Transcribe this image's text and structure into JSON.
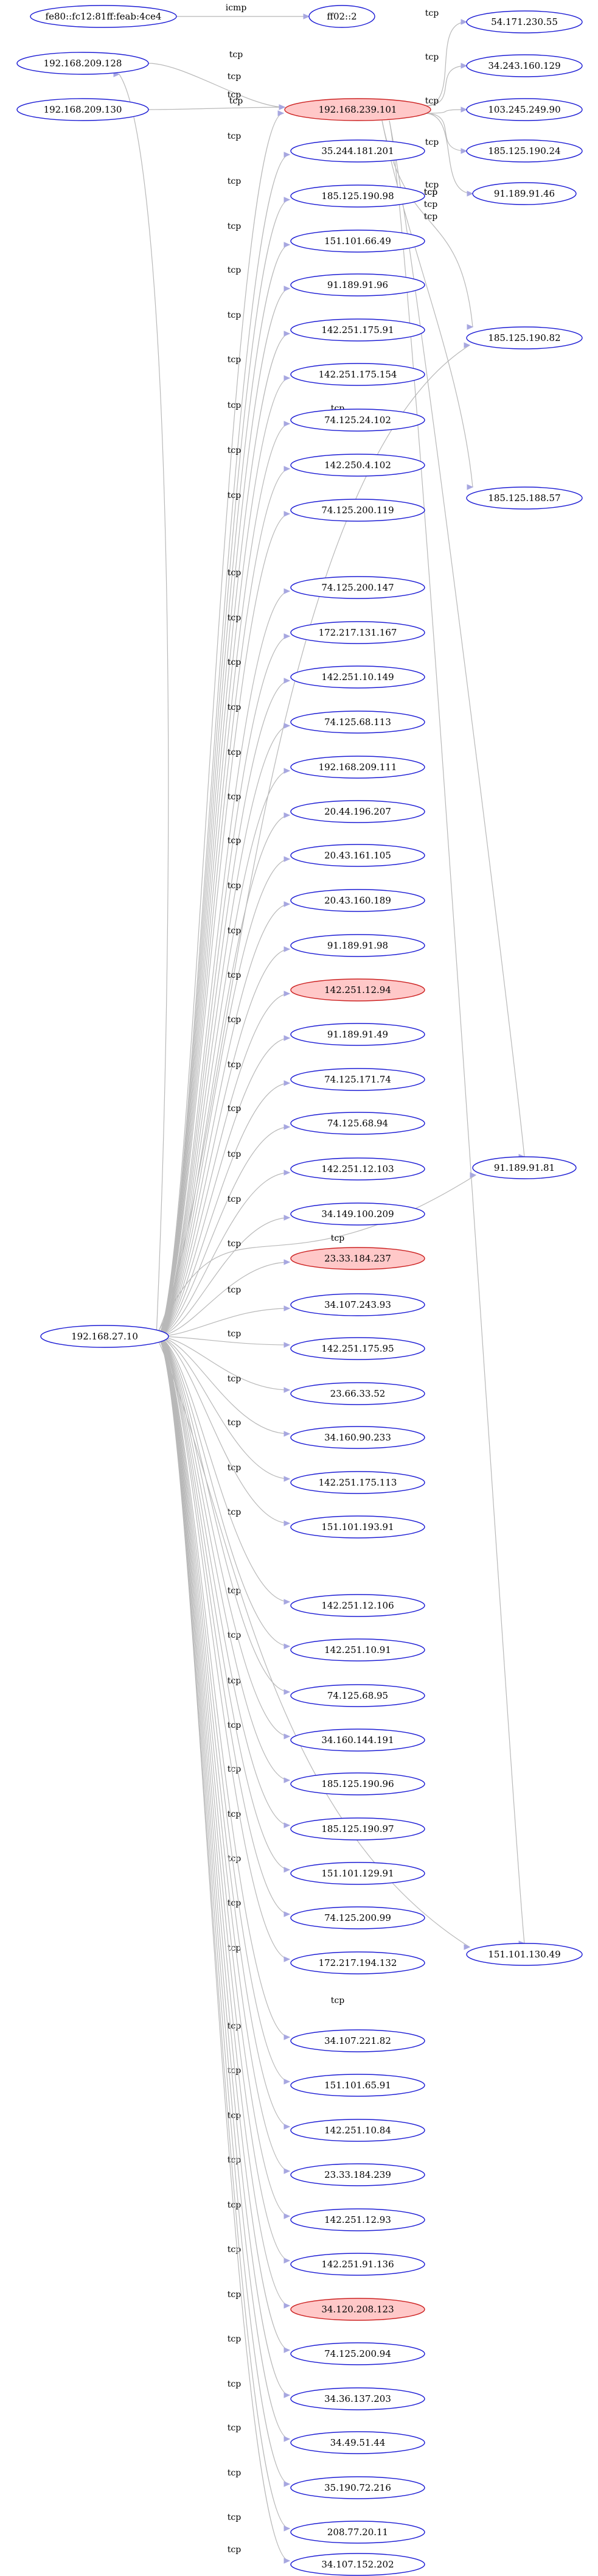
{
  "graph": {
    "nodes": [
      {
        "id": "n_fe80",
        "label": "fe80::fc12:81ff:feab:4ce4",
        "highlight": false
      },
      {
        "id": "n_ff02",
        "label": "ff02::2",
        "highlight": false
      },
      {
        "id": "n_209_128",
        "label": "192.168.209.128",
        "highlight": false
      },
      {
        "id": "n_209_130",
        "label": "192.168.209.130",
        "highlight": false
      },
      {
        "id": "n_hub1",
        "label": "192.168.239.101",
        "highlight": true
      },
      {
        "id": "n_54",
        "label": "54.171.230.55",
        "highlight": false
      },
      {
        "id": "n_34_243",
        "label": "34.243.160.129",
        "highlight": false
      },
      {
        "id": "n_103",
        "label": "103.245.249.90",
        "highlight": false
      },
      {
        "id": "n_185_24",
        "label": "185.125.190.24",
        "highlight": false
      },
      {
        "id": "n_91_46",
        "label": "91.189.91.46",
        "highlight": false
      },
      {
        "id": "n_185_82",
        "label": "185.125.190.82",
        "highlight": false
      },
      {
        "id": "n_185_188",
        "label": "185.125.188.57",
        "highlight": false
      },
      {
        "id": "n_91_81",
        "label": "91.189.91.81",
        "highlight": false
      },
      {
        "id": "n_151_130",
        "label": "151.101.130.49",
        "highlight": false
      },
      {
        "id": "n_hub2",
        "label": "192.168.27.10",
        "highlight": false
      },
      {
        "id": "c1",
        "label": "35.244.181.201",
        "highlight": false
      },
      {
        "id": "c2",
        "label": "185.125.190.98",
        "highlight": false
      },
      {
        "id": "c3",
        "label": "151.101.66.49",
        "highlight": false
      },
      {
        "id": "c4",
        "label": "91.189.91.96",
        "highlight": false
      },
      {
        "id": "c5",
        "label": "142.251.175.91",
        "highlight": false
      },
      {
        "id": "c6",
        "label": "142.251.175.154",
        "highlight": false
      },
      {
        "id": "c7",
        "label": "74.125.24.102",
        "highlight": false
      },
      {
        "id": "c8",
        "label": "142.250.4.102",
        "highlight": false
      },
      {
        "id": "c9",
        "label": "74.125.200.119",
        "highlight": false
      },
      {
        "id": "c10",
        "label": "74.125.200.147",
        "highlight": false
      },
      {
        "id": "c11",
        "label": "172.217.131.167",
        "highlight": false
      },
      {
        "id": "c12",
        "label": "142.251.10.149",
        "highlight": false
      },
      {
        "id": "c13",
        "label": "74.125.68.113",
        "highlight": false
      },
      {
        "id": "c14",
        "label": "192.168.209.111",
        "highlight": false
      },
      {
        "id": "c15",
        "label": "20.44.196.207",
        "highlight": false
      },
      {
        "id": "c16",
        "label": "20.43.161.105",
        "highlight": false
      },
      {
        "id": "c17",
        "label": "20.43.160.189",
        "highlight": false
      },
      {
        "id": "c18",
        "label": "91.189.91.98",
        "highlight": false
      },
      {
        "id": "c19",
        "label": "142.251.12.94",
        "highlight": true
      },
      {
        "id": "c20",
        "label": "91.189.91.49",
        "highlight": false
      },
      {
        "id": "c21",
        "label": "74.125.171.74",
        "highlight": false
      },
      {
        "id": "c22",
        "label": "74.125.68.94",
        "highlight": false
      },
      {
        "id": "c23",
        "label": "142.251.12.103",
        "highlight": false
      },
      {
        "id": "c24",
        "label": "34.149.100.209",
        "highlight": false
      },
      {
        "id": "c25",
        "label": "23.33.184.237",
        "highlight": true
      },
      {
        "id": "c26",
        "label": "34.107.243.93",
        "highlight": false
      },
      {
        "id": "c27",
        "label": "142.251.175.95",
        "highlight": false
      },
      {
        "id": "c28",
        "label": "23.66.33.52",
        "highlight": false
      },
      {
        "id": "c29",
        "label": "34.160.90.233",
        "highlight": false
      },
      {
        "id": "c30",
        "label": "142.251.175.113",
        "highlight": false
      },
      {
        "id": "c31",
        "label": "151.101.193.91",
        "highlight": false
      },
      {
        "id": "c32",
        "label": "142.251.12.106",
        "highlight": false
      },
      {
        "id": "c33",
        "label": "142.251.10.91",
        "highlight": false
      },
      {
        "id": "c34",
        "label": "74.125.68.95",
        "highlight": false
      },
      {
        "id": "c35",
        "label": "34.160.144.191",
        "highlight": false
      },
      {
        "id": "c36",
        "label": "185.125.190.96",
        "highlight": false
      },
      {
        "id": "c37",
        "label": "185.125.190.97",
        "highlight": false
      },
      {
        "id": "c38",
        "label": "151.101.129.91",
        "highlight": false
      },
      {
        "id": "c39",
        "label": "74.125.200.99",
        "highlight": false
      },
      {
        "id": "c40",
        "label": "172.217.194.132",
        "highlight": false
      },
      {
        "id": "c41",
        "label": "34.107.221.82",
        "highlight": false
      },
      {
        "id": "c42",
        "label": "151.101.65.91",
        "highlight": false
      },
      {
        "id": "c43",
        "label": "142.251.10.84",
        "highlight": false
      },
      {
        "id": "c44",
        "label": "23.33.184.239",
        "highlight": false
      },
      {
        "id": "c45",
        "label": "142.251.12.93",
        "highlight": false
      },
      {
        "id": "c46",
        "label": "142.251.91.136",
        "highlight": false
      },
      {
        "id": "c47",
        "label": "34.120.208.123",
        "highlight": true
      },
      {
        "id": "c48",
        "label": "74.125.200.94",
        "highlight": false
      },
      {
        "id": "c49",
        "label": "34.36.137.203",
        "highlight": false
      },
      {
        "id": "c50",
        "label": "34.49.51.44",
        "highlight": false
      },
      {
        "id": "c51",
        "label": "35.190.72.216",
        "highlight": false
      },
      {
        "id": "c52",
        "label": "208.77.20.11",
        "highlight": false
      },
      {
        "id": "c53",
        "label": "34.107.152.202",
        "highlight": false
      }
    ],
    "edges": [
      {
        "from": "n_fe80",
        "to": "n_ff02",
        "label": "icmp"
      },
      {
        "from": "n_209_128",
        "to": "n_hub1",
        "label": "tcp"
      },
      {
        "from": "n_209_130",
        "to": "n_hub1",
        "label": "tcp"
      },
      {
        "from": "n_hub1",
        "to": "n_54",
        "label": "tcp"
      },
      {
        "from": "n_hub1",
        "to": "n_34_243",
        "label": "tcp"
      },
      {
        "from": "n_hub1",
        "to": "n_103",
        "label": "tcp"
      },
      {
        "from": "n_hub1",
        "to": "n_185_24",
        "label": "tcp"
      },
      {
        "from": "n_hub1",
        "to": "n_91_46",
        "label": "tcp"
      },
      {
        "from": "n_hub1",
        "to": "n_185_82",
        "label": "tcp"
      },
      {
        "from": "n_hub1",
        "to": "n_185_188",
        "label": "tcp"
      },
      {
        "from": "n_hub1",
        "to": "n_91_81",
        "label": "tcp"
      },
      {
        "from": "n_hub1",
        "to": "n_151_130",
        "label": "tcp"
      },
      {
        "from": "n_hub2",
        "to": "n_hub1",
        "label": "tcp"
      },
      {
        "from": "n_hub2",
        "to": "n_209_128",
        "label": "tcp"
      },
      {
        "from": "n_hub2",
        "to": "c1",
        "label": "tcp"
      },
      {
        "from": "n_hub2",
        "to": "c2",
        "label": "tcp"
      },
      {
        "from": "n_hub2",
        "to": "c3",
        "label": "tcp"
      },
      {
        "from": "n_hub2",
        "to": "c4",
        "label": "tcp"
      },
      {
        "from": "n_hub2",
        "to": "c5",
        "label": "tcp"
      },
      {
        "from": "n_hub2",
        "to": "c6",
        "label": "tcp"
      },
      {
        "from": "n_hub2",
        "to": "c7",
        "label": "tcp"
      },
      {
        "from": "n_hub2",
        "to": "c8",
        "label": "tcp"
      },
      {
        "from": "n_hub2",
        "to": "c9",
        "label": "tcp"
      },
      {
        "from": "n_hub2",
        "to": "n_185_82",
        "label": "tcp"
      },
      {
        "from": "n_hub2",
        "to": "c10",
        "label": "tcp"
      },
      {
        "from": "n_hub2",
        "to": "c11",
        "label": "tcp"
      },
      {
        "from": "n_hub2",
        "to": "c12",
        "label": "tcp"
      },
      {
        "from": "n_hub2",
        "to": "c13",
        "label": "tcp"
      },
      {
        "from": "n_hub2",
        "to": "c14",
        "label": "tcp"
      },
      {
        "from": "n_hub2",
        "to": "c15",
        "label": "tcp"
      },
      {
        "from": "n_hub2",
        "to": "c16",
        "label": "tcp"
      },
      {
        "from": "n_hub2",
        "to": "c17",
        "label": "tcp"
      },
      {
        "from": "n_hub2",
        "to": "c18",
        "label": "tcp"
      },
      {
        "from": "n_hub2",
        "to": "c19",
        "label": "tcp"
      },
      {
        "from": "n_hub2",
        "to": "c20",
        "label": "tcp"
      },
      {
        "from": "n_hub2",
        "to": "c21",
        "label": "tcp"
      },
      {
        "from": "n_hub2",
        "to": "c22",
        "label": "tcp"
      },
      {
        "from": "n_hub2",
        "to": "c23",
        "label": "tcp"
      },
      {
        "from": "n_hub2",
        "to": "c24",
        "label": "tcp"
      },
      {
        "from": "n_hub2",
        "to": "c25",
        "label": "tcp"
      },
      {
        "from": "n_hub2",
        "to": "c26",
        "label": "tcp"
      },
      {
        "from": "n_hub2",
        "to": "c27",
        "label": "tcp"
      },
      {
        "from": "n_hub2",
        "to": "c28",
        "label": "tcp"
      },
      {
        "from": "n_hub2",
        "to": "c29",
        "label": "tcp"
      },
      {
        "from": "n_hub2",
        "to": "c30",
        "label": "tcp"
      },
      {
        "from": "n_hub2",
        "to": "c31",
        "label": "tcp"
      },
      {
        "from": "n_hub2",
        "to": "n_91_81",
        "label": "tcp"
      },
      {
        "from": "n_hub2",
        "to": "c32",
        "label": "tcp"
      },
      {
        "from": "n_hub2",
        "to": "c33",
        "label": "tcp"
      },
      {
        "from": "n_hub2",
        "to": "c34",
        "label": "tcp"
      },
      {
        "from": "n_hub2",
        "to": "c35",
        "label": "tcp"
      },
      {
        "from": "n_hub2",
        "to": "c36",
        "label": "tcp"
      },
      {
        "from": "n_hub2",
        "to": "c37",
        "label": "tcp"
      },
      {
        "from": "n_hub2",
        "to": "c38",
        "label": "tcp"
      },
      {
        "from": "n_hub2",
        "to": "c39",
        "label": "tcp"
      },
      {
        "from": "n_hub2",
        "to": "c40",
        "label": "tcp"
      },
      {
        "from": "n_hub2",
        "to": "n_151_130",
        "label": "tcp"
      },
      {
        "from": "n_hub2",
        "to": "c41",
        "label": "tcp"
      },
      {
        "from": "n_hub2",
        "to": "c42",
        "label": "tcp"
      },
      {
        "from": "n_hub2",
        "to": "c43",
        "label": "tcp"
      },
      {
        "from": "n_hub2",
        "to": "c44",
        "label": "tcp"
      },
      {
        "from": "n_hub2",
        "to": "c45",
        "label": "tcp"
      },
      {
        "from": "n_hub2",
        "to": "c46",
        "label": "tcp"
      },
      {
        "from": "n_hub2",
        "to": "c47",
        "label": "tcp"
      },
      {
        "from": "n_hub2",
        "to": "c48",
        "label": "tcp"
      },
      {
        "from": "n_hub2",
        "to": "c49",
        "label": "tcp"
      },
      {
        "from": "n_hub2",
        "to": "c50",
        "label": "tcp"
      },
      {
        "from": "n_hub2",
        "to": "c51",
        "label": "tcp"
      },
      {
        "from": "n_hub2",
        "to": "c52",
        "label": "tcp"
      },
      {
        "from": "n_hub2",
        "to": "c53",
        "label": "tcp"
      }
    ],
    "colors": {
      "node_border": "#1c1cd4",
      "node_fill": "#ffffff",
      "highlight_fill": "#ffc8c8",
      "highlight_border": "#cc2222",
      "edge": "#b8b8b8",
      "arrowhead": "#a7a7e0",
      "text": "#000000"
    }
  }
}
